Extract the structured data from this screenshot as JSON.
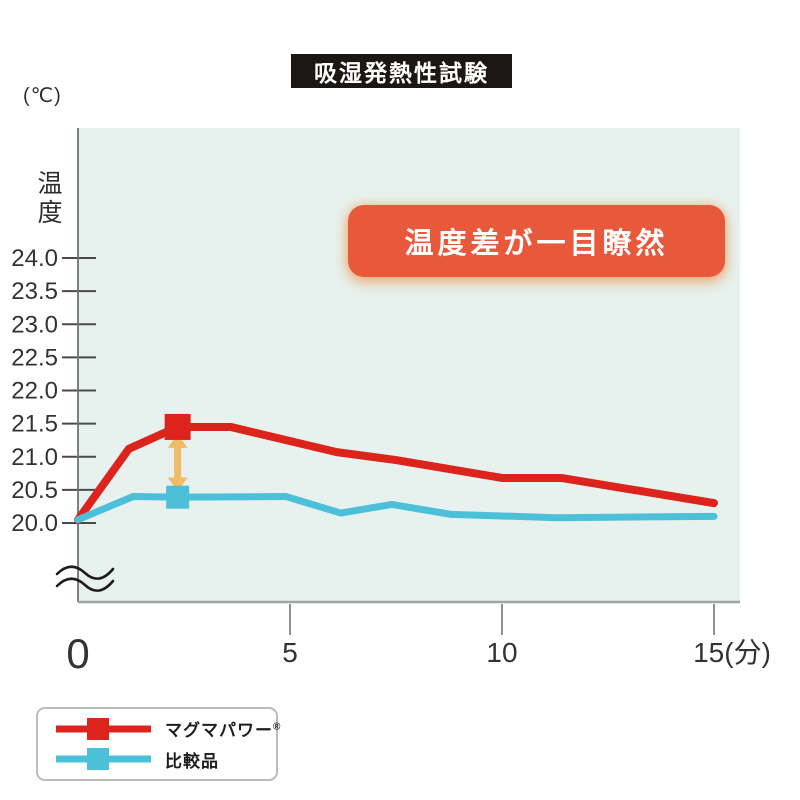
{
  "title": "吸湿発熱性試験",
  "badge": {
    "text": "温度差が一目瞭然",
    "bg_color": "#e8593c"
  },
  "y_axis": {
    "unit": "(℃)",
    "title": "温度"
  },
  "legend": {
    "items": [
      {
        "label": "マグマパワー",
        "suffix": "®",
        "color": "#dc241c"
      },
      {
        "label": "比較品",
        "suffix": "",
        "color": "#4dc0d9"
      }
    ]
  },
  "chart_data": {
    "type": "line",
    "title": "吸湿発熱性試験",
    "xlabel": "(分)",
    "ylabel": "温度 (℃)",
    "xlim": [
      0,
      15
    ],
    "ylim": [
      20.0,
      24.0
    ],
    "grid": false,
    "axis_break_below_ymin": true,
    "plot_bg": "#e7f2ef",
    "axis_color": "#6b7472",
    "baseline_color": "#9aa6a2",
    "tick_color": "#4a4a4a",
    "label_color": "#333333",
    "y_ticks": [
      20.0,
      20.5,
      21.0,
      21.5,
      22.0,
      22.5,
      23.0,
      23.5,
      24.0
    ],
    "x_ticks": [
      {
        "value": 0,
        "label": "0",
        "big": true,
        "tick_mark": false
      },
      {
        "value": 5,
        "label": "5",
        "big": false,
        "tick_mark": true
      },
      {
        "value": 10,
        "label": "10",
        "big": false,
        "tick_mark": true
      },
      {
        "value": 15,
        "label": "15(分)",
        "big": false,
        "tick_mark": true,
        "dx": 18
      }
    ],
    "series": [
      {
        "name": "マグマパワー®",
        "color": "#dc241c",
        "line_width": 8,
        "x": [
          0,
          1.2,
          2.35,
          3.6,
          6.1,
          7.5,
          10,
          11.4,
          15
        ],
        "y": [
          20.05,
          21.12,
          21.45,
          21.45,
          21.07,
          20.95,
          20.68,
          20.68,
          20.3
        ],
        "marker": {
          "x": 2.35,
          "y": 21.45,
          "shape": "square",
          "size": 26
        }
      },
      {
        "name": "比較品",
        "color": "#4dc0d9",
        "line_width": 7,
        "x": [
          0,
          1.3,
          2.35,
          4.9,
          6.2,
          7.4,
          8.8,
          11.3,
          15
        ],
        "y": [
          20.05,
          20.4,
          20.39,
          20.4,
          20.15,
          20.28,
          20.13,
          20.08,
          20.1
        ],
        "marker": {
          "x": 2.35,
          "y": 20.39,
          "shape": "square",
          "size": 23
        }
      }
    ],
    "annotation_arrow": {
      "x": 2.35,
      "from_y": 21.3,
      "to_y": 20.52,
      "color": "#f2bb68",
      "style": "double-headed-vertical"
    }
  }
}
